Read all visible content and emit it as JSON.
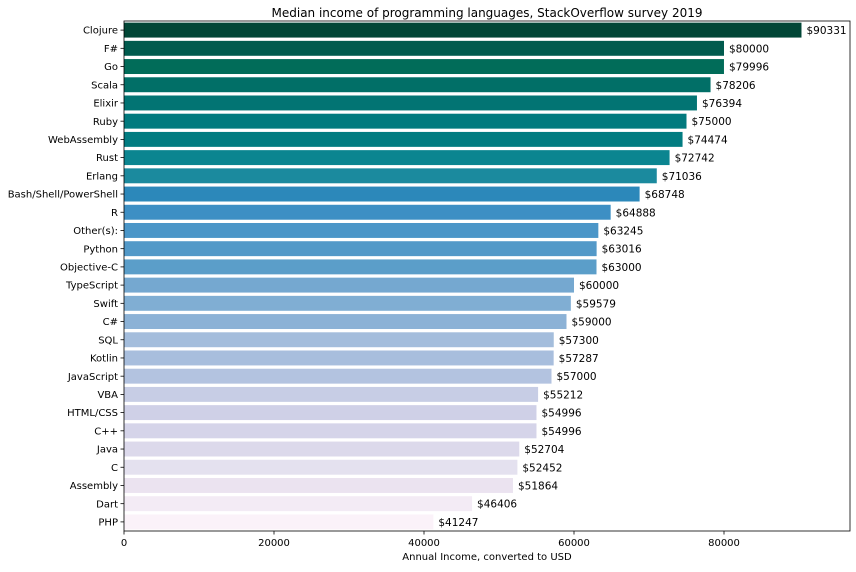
{
  "chart_data": {
    "type": "bar",
    "orientation": "horizontal",
    "title": "Median income of programming languages, StackOverflow survey 2019",
    "xlabel": "Annual Income, converted to USD",
    "ylabel": "",
    "xlim": [
      0,
      96800
    ],
    "xticks": [
      0,
      20000,
      40000,
      60000,
      80000
    ],
    "grid": false,
    "value_prefix": "$",
    "categories": [
      "Clojure",
      "F#",
      "Go",
      "Scala",
      "Elixir",
      "Ruby",
      "WebAssembly",
      "Rust",
      "Erlang",
      "Bash/Shell/PowerShell",
      "R",
      "Other(s):",
      "Python",
      "Objective-C",
      "TypeScript",
      "Swift",
      "C#",
      "SQL",
      "Kotlin",
      "JavaScript",
      "VBA",
      "HTML/CSS",
      "C++",
      "Java",
      "C",
      "Assembly",
      "Dart",
      "PHP"
    ],
    "values": [
      90331,
      80000,
      79996,
      78206,
      76394,
      75000,
      74474,
      72742,
      71036,
      68748,
      64888,
      63245,
      63016,
      63000,
      60000,
      59579,
      59000,
      57300,
      57287,
      57000,
      55212,
      54996,
      54996,
      52704,
      52452,
      51864,
      46406,
      41247
    ],
    "value_labels": [
      "$90331",
      "$80000",
      "$79996",
      "$78206",
      "$76394",
      "$75000",
      "$74474",
      "$72742",
      "$71036",
      "$68748",
      "$64888",
      "$63245",
      "$63016",
      "$63000",
      "$60000",
      "$59579",
      "$59000",
      "$57300",
      "$57287",
      "$57000",
      "$55212",
      "$54996",
      "$54996",
      "$52704",
      "$52452",
      "$51864",
      "$46406",
      "$41247"
    ],
    "colors": [
      "#014636",
      "#015b4e",
      "#016c59",
      "#016f67",
      "#027473",
      "#027a7e",
      "#027c81",
      "#0b8590",
      "#1b8a9e",
      "#2c88ba",
      "#3d8fc4",
      "#4b96c8",
      "#5399c8",
      "#5b9ec9",
      "#75a8d0",
      "#80aed3",
      "#8cb2d6",
      "#a4bddc",
      "#a8bedd",
      "#b3c3e0",
      "#c7cde5",
      "#cfd0e7",
      "#d5d4e9",
      "#dcd9eb",
      "#e4e1ef",
      "#ebe3f0",
      "#f3ebf5",
      "#fbf2f9"
    ]
  }
}
